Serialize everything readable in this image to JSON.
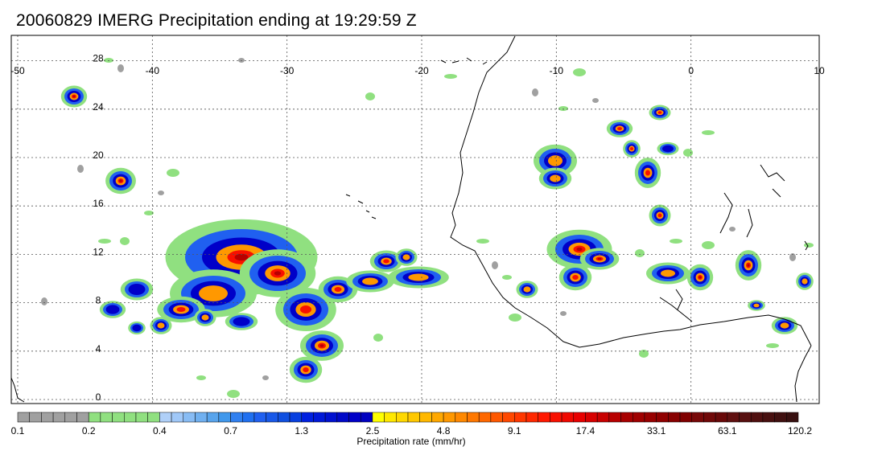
{
  "title": "20060829 IMERG Precipitation ending at 19:29:59 Z",
  "map": {
    "lon_labels": [
      "-50",
      "-40",
      "-30",
      "-20",
      "-10",
      "0",
      "10"
    ],
    "lon_values": [
      -50,
      -40,
      -30,
      -20,
      -10,
      0,
      10
    ],
    "lat_labels": [
      "28",
      "24",
      "20",
      "16",
      "12",
      "8",
      "4",
      "0"
    ],
    "lat_values": [
      28,
      24,
      20,
      16,
      12,
      8,
      4,
      0
    ],
    "lon_range": [
      -50,
      10
    ],
    "lat_range": [
      -0.5,
      30
    ],
    "grid": true,
    "coastline_color": "#000000"
  },
  "legend": {
    "label": "Precipitation rate (mm/hr)",
    "tick_labels": [
      "0.1",
      "0.2",
      "0.4",
      "0.7",
      "1.3",
      "2.5",
      "4.8",
      "9.1",
      "17.4",
      "33.1",
      "63.1",
      "120.2"
    ],
    "tick_positions": [
      0,
      6,
      12,
      18,
      24,
      30,
      36,
      42,
      48,
      54,
      60,
      66
    ],
    "colors": [
      "#a0a0a0",
      "#a0a0a0",
      "#a0a0a0",
      "#a0a0a0",
      "#a0a0a0",
      "#a0a0a0",
      "#90e080",
      "#90e080",
      "#90e080",
      "#90e080",
      "#90e080",
      "#90e080",
      "#b0d0f8",
      "#a0c8f8",
      "#88bcf4",
      "#70b0f0",
      "#58a4ec",
      "#4098ec",
      "#3080f0",
      "#2070f0",
      "#2060f0",
      "#1858e8",
      "#1050e0",
      "#0840e0",
      "#0020e0",
      "#0018d8",
      "#0010d0",
      "#0008c8",
      "#0000c8",
      "#0000c0",
      "#ffff00",
      "#ffe800",
      "#ffd800",
      "#ffc800",
      "#ffb800",
      "#ffa800",
      "#ff9800",
      "#ff8800",
      "#ff7800",
      "#ff6800",
      "#ff5800",
      "#ff4800",
      "#ff3800",
      "#ff2800",
      "#ff1800",
      "#f81000",
      "#f00800",
      "#e80000",
      "#d80000",
      "#c80000",
      "#b80000",
      "#a80000",
      "#a00000",
      "#980000",
      "#900000",
      "#880000",
      "#800000",
      "#780808",
      "#700808",
      "#680808",
      "#601010",
      "#581010",
      "#501010",
      "#481010",
      "#401010",
      "#381010"
    ]
  }
}
